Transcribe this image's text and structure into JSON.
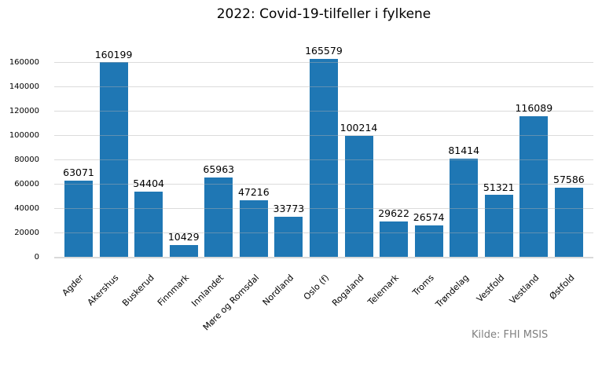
{
  "header": {
    "title": "2022: Covid-19-tilfeller i fylkene"
  },
  "footer": {
    "source": "Kilde: FHI MSIS"
  },
  "colors": {
    "bar": "#1f77b4",
    "grid": "#b0b0b0",
    "axis_line": "#d9d9d9",
    "text": "#000000",
    "muted": "#808080",
    "background": "#ffffff"
  },
  "chart_data": {
    "type": "bar",
    "title": "2022: Covid-19-tilfeller i fylkene",
    "xlabel": "",
    "ylabel": "",
    "categories": [
      "Agder",
      "Akershus",
      "Buskerud",
      "Finnmark",
      "Innlandet",
      "Møre og Romsdal",
      "Nordland",
      "Oslo (f)",
      "Rogaland",
      "Telemark",
      "Troms",
      "Trøndelag",
      "Vestfold",
      "Vestland",
      "Østfold"
    ],
    "values": [
      63071,
      160199,
      54404,
      10429,
      65963,
      47216,
      33773,
      165579,
      100214,
      29622,
      26574,
      81414,
      51321,
      116089,
      57586
    ],
    "bar_color": "#1f77b4",
    "yticks": [
      0,
      20000,
      40000,
      60000,
      80000,
      100000,
      120000,
      140000,
      160000
    ],
    "ylim": [
      0,
      174000
    ],
    "grid": "horizontal",
    "gridlines_over_bars": true,
    "legend": "none",
    "value_labels": true,
    "x_tick_rotation": 45,
    "source": "Kilde: FHI MSIS"
  }
}
